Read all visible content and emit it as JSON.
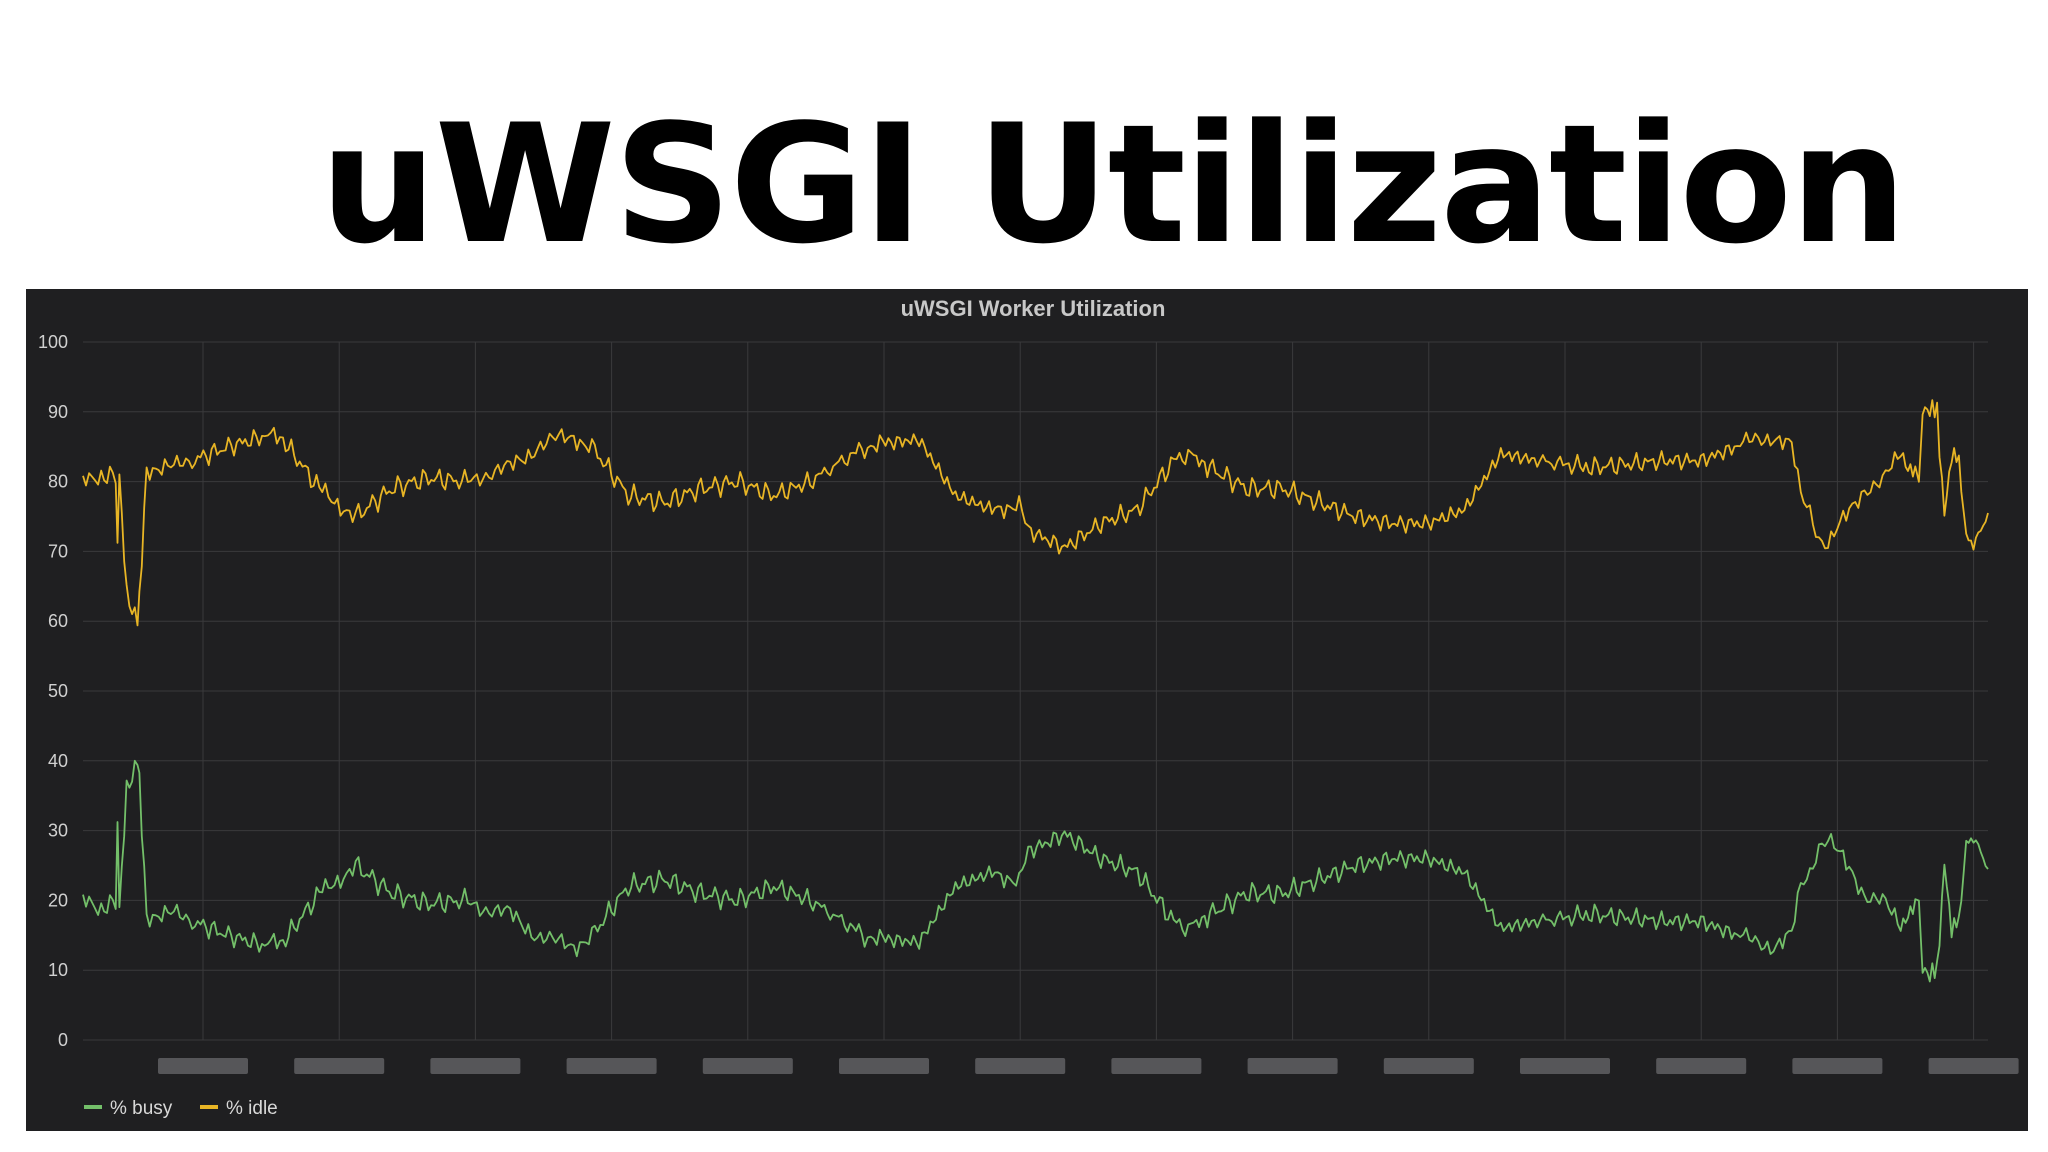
{
  "slide": {
    "title": "uWSGI Utilization"
  },
  "chart_data": {
    "type": "line",
    "title": "uWSGI Worker Utilization",
    "ylim": [
      0,
      100
    ],
    "yticks": [
      0,
      10,
      20,
      30,
      40,
      50,
      60,
      70,
      80,
      90,
      100
    ],
    "xlim": [
      0,
      1000
    ],
    "x_tick_count": 14,
    "x_tick_labels_redacted": true,
    "grid": true,
    "legend_position": "bottom-left",
    "colors": {
      "busy": "#73bf69",
      "idle": "#e8b525",
      "grid": "#3a3a3c",
      "background": "#1f1f21"
    },
    "series": [
      {
        "name": "% busy",
        "color": "#73bf69",
        "x": [
          0,
          10,
          18,
          19,
          20,
          24,
          27,
          30,
          31,
          35,
          50,
          60,
          80,
          100,
          110,
          130,
          140,
          150,
          170,
          190,
          210,
          220,
          235,
          250,
          260,
          270,
          280,
          300,
          320,
          340,
          360,
          380,
          400,
          430,
          440,
          460,
          480,
          500,
          515,
          520,
          540,
          560,
          580,
          600,
          608,
          620,
          640,
          660,
          680,
          700,
          720,
          740,
          760,
          780,
          800,
          830,
          850,
          870,
          890,
          910,
          920,
          930,
          940,
          945,
          950,
          955,
          960,
          970,
          980,
          990,
          1000
        ],
        "y": [
          20,
          19,
          19.5,
          30,
          19,
          36,
          38,
          40,
          37,
          18,
          18,
          17,
          15,
          13.5,
          14,
          21,
          23,
          25,
          21,
          19.5,
          20,
          19,
          18,
          15,
          14,
          13.5,
          15,
          22,
          23,
          21,
          20,
          22,
          20,
          15,
          14.5,
          14,
          22,
          24,
          23,
          27,
          29.5,
          26,
          24,
          17,
          16,
          18,
          21,
          21,
          23,
          25,
          26,
          26,
          24,
          16,
          17,
          18,
          17.5,
          17,
          17,
          15,
          14,
          13.5,
          15,
          22,
          24,
          28,
          29,
          25,
          21,
          20,
          16
        ]
      },
      {
        "name": "% idle",
        "color": "#e8b525",
        "x": [
          0,
          10,
          18,
          19,
          20,
          24,
          27,
          30,
          31,
          35,
          50,
          60,
          80,
          100,
          110,
          130,
          140,
          150,
          170,
          190,
          210,
          220,
          235,
          250,
          260,
          270,
          280,
          300,
          320,
          340,
          360,
          380,
          400,
          430,
          440,
          460,
          480,
          500,
          515,
          520,
          540,
          560,
          580,
          600,
          608,
          620,
          640,
          660,
          680,
          700,
          720,
          740,
          760,
          780,
          800,
          830,
          850,
          870,
          890,
          910,
          920,
          930,
          940,
          945,
          950,
          955,
          960,
          970,
          980,
          990,
          1000
        ],
        "y": [
          80,
          81,
          80.5,
          70,
          81,
          64,
          62,
          60,
          63,
          82,
          82,
          83,
          85,
          86.5,
          86,
          79,
          77,
          75,
          79,
          80.5,
          80,
          81,
          82,
          85,
          86,
          86.5,
          85,
          78,
          77,
          79,
          80,
          78,
          80,
          85,
          85.5,
          86,
          78,
          76,
          77,
          73,
          70.5,
          74,
          76,
          83,
          84,
          82,
          79,
          79,
          77,
          75,
          74,
          74,
          76,
          84,
          83,
          82,
          82.5,
          83,
          83,
          85,
          86,
          86.5,
          85,
          78,
          76,
          72,
          71,
          75,
          79,
          80,
          84
        ]
      }
    ],
    "tail_extension": {
      "x": [
        1000,
        1004,
        1008,
        1010,
        1012,
        1016,
        1020,
        1024,
        1028,
        1032,
        1036,
        1040,
        1044,
        1048
      ],
      "busy": [
        16,
        18,
        19,
        20,
        10,
        9.5,
        10,
        25,
        16,
        17,
        28,
        29,
        27,
        24.5
      ],
      "idle": [
        84,
        82,
        81,
        80,
        90,
        90.5,
        90,
        75,
        84,
        83,
        72,
        71,
        73,
        75.5
      ]
    }
  },
  "legend": {
    "items": [
      {
        "label": "% busy",
        "color": "#73bf69"
      },
      {
        "label": "% idle",
        "color": "#e8b525"
      }
    ]
  }
}
